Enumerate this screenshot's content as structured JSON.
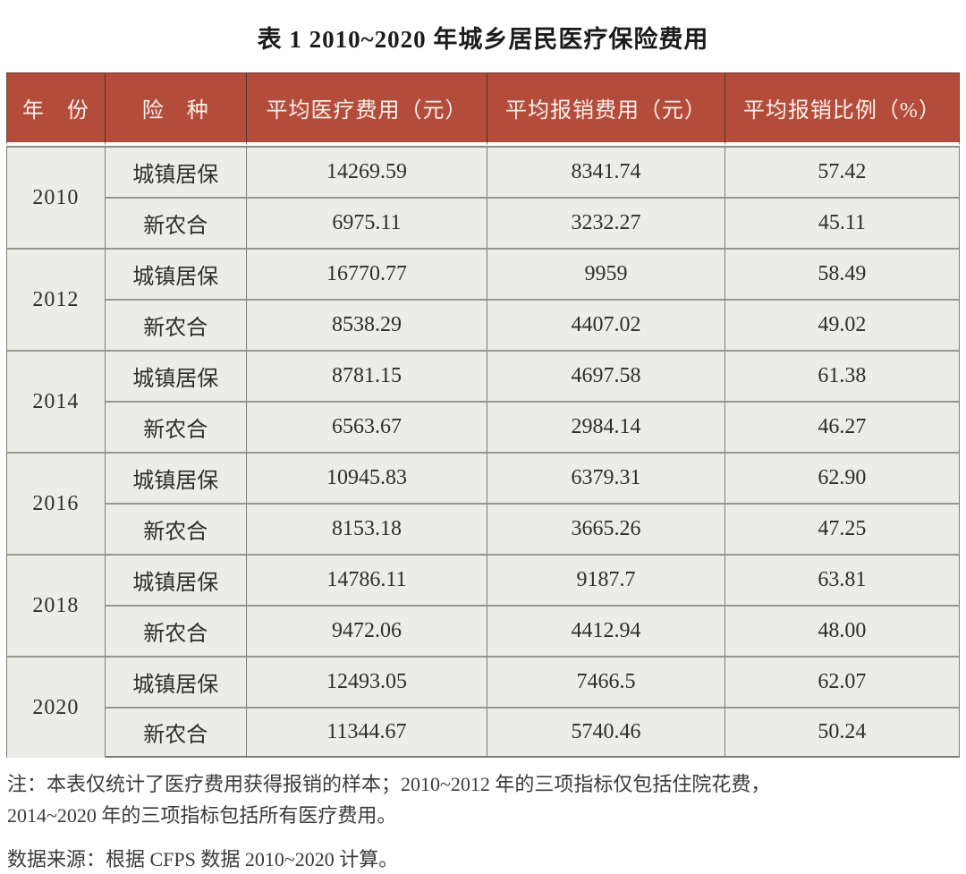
{
  "title": "表 1  2010~2020 年城乡居民医疗保险费用",
  "table": {
    "columns": [
      "年　份",
      "险　种",
      "平均医疗费用（元）",
      "平均报销费用（元）",
      "平均报销比例（%）"
    ],
    "groups": [
      {
        "year": "2010",
        "rows": [
          [
            "城镇居保",
            "14269.59",
            "8341.74",
            "57.42"
          ],
          [
            "新农合",
            "6975.11",
            "3232.27",
            "45.11"
          ]
        ]
      },
      {
        "year": "2012",
        "rows": [
          [
            "城镇居保",
            "16770.77",
            "9959",
            "58.49"
          ],
          [
            "新农合",
            "8538.29",
            "4407.02",
            "49.02"
          ]
        ]
      },
      {
        "year": "2014",
        "rows": [
          [
            "城镇居保",
            "8781.15",
            "4697.58",
            "61.38"
          ],
          [
            "新农合",
            "6563.67",
            "2984.14",
            "46.27"
          ]
        ]
      },
      {
        "year": "2016",
        "rows": [
          [
            "城镇居保",
            "10945.83",
            "6379.31",
            "62.90"
          ],
          [
            "新农合",
            "8153.18",
            "3665.26",
            "47.25"
          ]
        ]
      },
      {
        "year": "2018",
        "rows": [
          [
            "城镇居保",
            "14786.11",
            "9187.7",
            "63.81"
          ],
          [
            "新农合",
            "9472.06",
            "4412.94",
            "48.00"
          ]
        ]
      },
      {
        "year": "2020",
        "rows": [
          [
            "城镇居保",
            "12493.05",
            "7466.5",
            "62.07"
          ],
          [
            "新农合",
            "11344.67",
            "5740.46",
            "50.24"
          ]
        ]
      }
    ]
  },
  "notes": {
    "note_line1": "注：本表仅统计了医疗费用获得报销的样本；2010~2012 年的三项指标仅包括住院花费，",
    "note_line2": "2014~2020 年的三项指标包括所有医疗费用。",
    "source": "数据来源：根据 CFPS 数据 2010~2020 计算。"
  },
  "colors": {
    "header_bg": "#B44C3B",
    "header_text": "#FBF1EA",
    "cell_bg": "#ECECE8",
    "grid_line": "#8D8D8D",
    "text": "#2F2F2F"
  }
}
